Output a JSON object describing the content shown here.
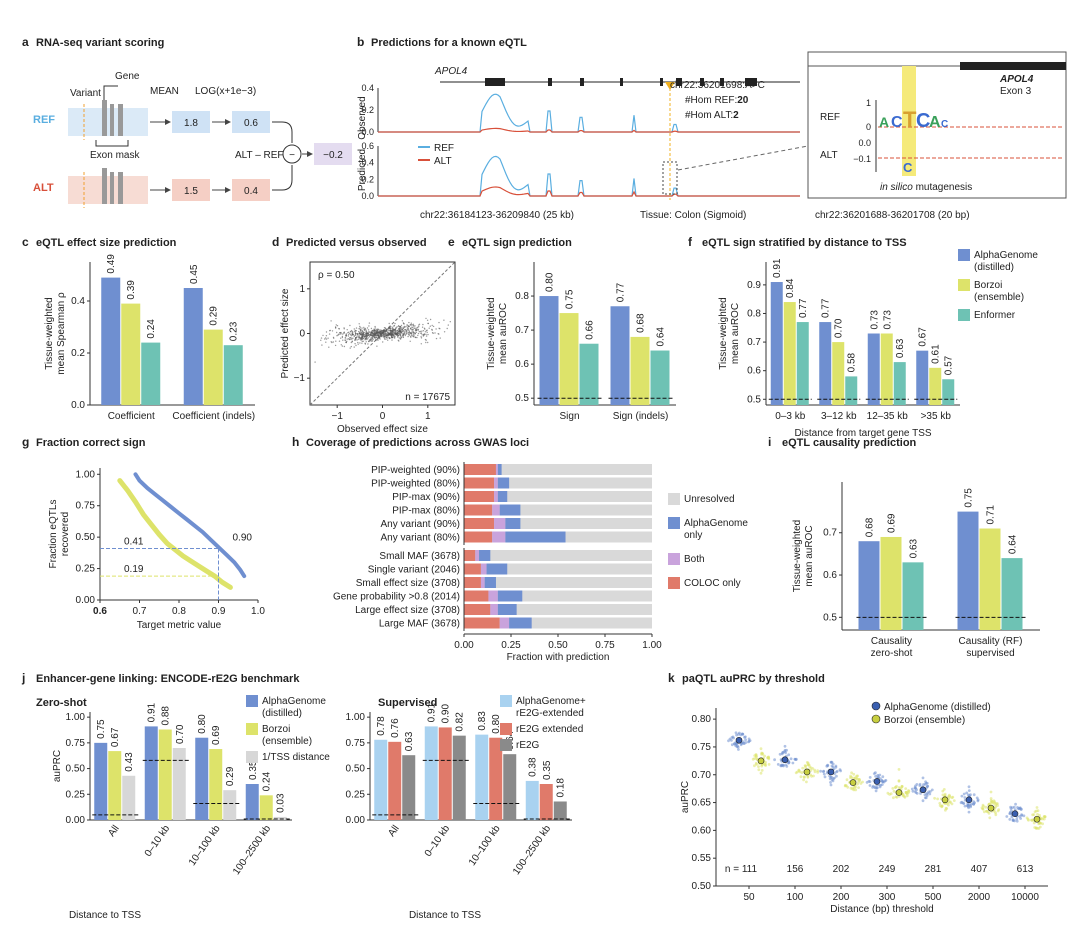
{
  "colors": {
    "ag": "#6f8fd0",
    "bz": "#dde36a",
    "en": "#6ec2b4",
    "grey": "#d9d9d9",
    "ref": "#5aaee0",
    "alt": "#d8503a",
    "coloc": "#e07a6a",
    "both": "#c9a3dc",
    "ag_ext": "#a9d2f0",
    "re2g_ext": "#e07a6a",
    "re2g": "#8a8a8a",
    "tss": "#d7d7d7"
  },
  "panel_a": {
    "letter": "a",
    "title": "RNA-seq variant scoring",
    "variant": "Variant",
    "gene": "Gene",
    "mean": "MEAN",
    "log": "LOG(x+1e−3)",
    "ref": "REF",
    "alt": "ALT",
    "exon_mask": "Exon mask",
    "ref_mean": "1.8",
    "ref_log": "0.6",
    "alt_mean": "1.5",
    "alt_log": "0.4",
    "alt_minus_ref": "ALT – REF",
    "result": "−0.2",
    "minus": "−"
  },
  "panel_b": {
    "letter": "b",
    "title": "Predictions for a known eQTL",
    "gene": "APOL4",
    "variant": "chr22:36201698:A>C",
    "hom_ref_label": "#Hom REF:",
    "hom_ref": "20",
    "hom_alt_label": "#Hom ALT:",
    "hom_alt": "2",
    "observed": "Observed",
    "predicted": "Predicted",
    "ref": "REF",
    "alt": "ALT",
    "region": "chr22:36184123-36209840 (25 kb)",
    "tissue": "Tissue: Colon (Sigmoid)",
    "zoom_region": "chr22:36201688-36201708 (20 bp)",
    "zoom_gene": "APOL4",
    "zoom_exon": "Exon 3",
    "zoom_ref": "REF",
    "zoom_alt": "ALT",
    "ism_italic": "in silico",
    "ism_rest": " mutagenesis",
    "obs_ticks": [
      "0.4",
      "0.2",
      "0.0"
    ],
    "pred_ticks": [
      "0.6",
      "0.4",
      "0.2",
      "0.0"
    ],
    "zoom_ticks_ref": [
      "1",
      "0"
    ],
    "zoom_ticks_alt": [
      "0.0",
      "−0.1"
    ]
  },
  "panel_c": {
    "letter": "c",
    "title": "eQTL effect size prediction",
    "ylabel": "Tissue-weighted mean Spearman ρ",
    "yticks": [
      "0.0",
      "0.2",
      "0.4"
    ],
    "chart_data": {
      "type": "bar",
      "categories": [
        "Coefficient",
        "Coefficient (indels)"
      ],
      "series": [
        {
          "values": [
            0.49,
            0.45
          ],
          "labels": [
            "0.49",
            "0.45"
          ]
        },
        {
          "values": [
            0.39,
            0.29
          ],
          "labels": [
            "0.39",
            "0.29"
          ]
        },
        {
          "values": [
            0.24,
            0.23
          ],
          "labels": [
            "0.24",
            "0.23"
          ]
        }
      ],
      "ylim": [
        0,
        0.55
      ]
    }
  },
  "panel_d": {
    "letter": "d",
    "title": "Predicted versus observed",
    "xlabel": "Observed effect size",
    "ylabel": "Predicted effect size",
    "rho": "ρ = 0.50",
    "n": "n = 17675",
    "xticks": [
      "−1",
      "0",
      "1"
    ],
    "yticks": [
      "1",
      "0",
      "−1"
    ],
    "chart_data": {
      "type": "scatter",
      "xlim": [
        -1.6,
        1.6
      ],
      "ylim": [
        -1.6,
        1.6
      ]
    }
  },
  "panel_e": {
    "letter": "e",
    "title": "eQTL sign prediction",
    "ylabel": "Tissue-weighted mean auROC",
    "yticks": [
      "0.8",
      "0.7",
      "0.6",
      "0.5"
    ],
    "chart_data": {
      "type": "bar",
      "categories": [
        "Sign",
        "Sign (indels)"
      ],
      "series": [
        {
          "values": [
            0.8,
            0.77
          ],
          "labels": [
            "0.80",
            "0.77"
          ]
        },
        {
          "values": [
            0.75,
            0.68
          ],
          "labels": [
            "0.75",
            "0.68"
          ]
        },
        {
          "values": [
            0.66,
            0.64
          ],
          "labels": [
            "0.66",
            "0.64"
          ]
        }
      ],
      "ylim": [
        0.48,
        0.9
      ]
    }
  },
  "panel_f": {
    "letter": "f",
    "title": "eQTL sign stratified by distance to TSS",
    "ylabel": "Tissue-weighted mean auROC",
    "xlabel": "Distance from target gene TSS",
    "yticks": [
      "0.9",
      "0.8",
      "0.7",
      "0.6",
      "0.5"
    ],
    "legend": [
      "AlphaGenome (distilled)",
      "Borzoi (ensemble)",
      "Enformer"
    ],
    "legend_lines": [
      [
        "AlphaGenome",
        "(distilled)"
      ],
      [
        "Borzoi",
        "(ensemble)"
      ],
      [
        "Enformer"
      ]
    ],
    "chart_data": {
      "type": "bar",
      "categories": [
        "0–3 kb",
        "3–12 kb",
        "12–35 kb",
        ">35 kb"
      ],
      "series": [
        {
          "name": "AlphaGenome (distilled)",
          "values": [
            0.91,
            0.77,
            0.73,
            0.67
          ],
          "labels": [
            "0.91",
            "0.77",
            "0.73",
            "0.67"
          ]
        },
        {
          "name": "Borzoi (ensemble)",
          "values": [
            0.84,
            0.7,
            0.73,
            0.61
          ],
          "labels": [
            "0.84",
            "0.70",
            "0.73",
            "0.61"
          ]
        },
        {
          "name": "Enformer",
          "values": [
            0.77,
            0.58,
            0.63,
            0.57
          ],
          "labels": [
            "0.77",
            "0.58",
            "0.63",
            "0.57"
          ]
        }
      ],
      "ylim": [
        0.48,
        0.98
      ]
    }
  },
  "panel_g": {
    "letter": "g",
    "title": "Fraction correct sign",
    "ylabel": "Fraction eQTLs recovered",
    "xlabel": "Target metric value",
    "yticks": [
      "1.00",
      "0.75",
      "0.50",
      "0.25",
      "0.00"
    ],
    "xticks": [
      "0.6",
      "0.7",
      "0.8",
      "0.9",
      "1.0"
    ],
    "ann_041": "0.41",
    "ann_019": "0.19",
    "ann_090": "0.90",
    "chart_data": {
      "type": "line",
      "xlim": [
        0.6,
        1.0
      ],
      "ylim": [
        0,
        1.05
      ],
      "series": [
        {
          "x": [
            0.69,
            0.7,
            0.72,
            0.74,
            0.76,
            0.78,
            0.8,
            0.82,
            0.84,
            0.86,
            0.88,
            0.9,
            0.92,
            0.94,
            0.955,
            0.965
          ],
          "y": [
            1.0,
            0.95,
            0.89,
            0.84,
            0.79,
            0.74,
            0.69,
            0.64,
            0.59,
            0.54,
            0.48,
            0.42,
            0.36,
            0.3,
            0.24,
            0.19
          ]
        },
        {
          "x": [
            0.65,
            0.67,
            0.69,
            0.71,
            0.73,
            0.75,
            0.77,
            0.79,
            0.81,
            0.83,
            0.85,
            0.87,
            0.89,
            0.91,
            0.93
          ],
          "y": [
            0.95,
            0.87,
            0.78,
            0.68,
            0.6,
            0.52,
            0.45,
            0.4,
            0.35,
            0.31,
            0.27,
            0.23,
            0.19,
            0.14,
            0.1
          ]
        }
      ]
    }
  },
  "panel_h": {
    "letter": "h",
    "title": "Coverage of predictions across GWAS loci",
    "xlabel": "Fraction with prediction",
    "xticks": [
      "0.00",
      "0.25",
      "0.50",
      "0.75",
      "1.00"
    ],
    "legend": [
      "Unresolved",
      "AlphaGenome only",
      "Both",
      "COLOC only"
    ],
    "legend_lines": [
      [
        "Unresolved"
      ],
      [
        "AlphaGenome",
        "only"
      ],
      [
        "Both"
      ],
      [
        "COLOC only"
      ]
    ],
    "chart_data": {
      "type": "bar",
      "orientation": "horizontal",
      "xlim": [
        0,
        1
      ],
      "groups": [
        {
          "categories": [
            "PIP-weighted (90%)",
            "PIP-weighted (80%)",
            "PIP-max (90%)",
            "PIP-max (80%)",
            "Any variant (90%)",
            "Any variant (80%)"
          ],
          "coloc": [
            0.17,
            0.16,
            0.16,
            0.15,
            0.16,
            0.15
          ],
          "both": [
            0.01,
            0.02,
            0.02,
            0.04,
            0.06,
            0.07
          ],
          "ag": [
            0.02,
            0.06,
            0.05,
            0.11,
            0.08,
            0.32
          ]
        },
        {
          "categories": [
            "Small MAF (3678)",
            "Single variant (2046)",
            "Small effect size (3708)",
            "Gene probability >0.8 (2014)",
            "Large effect size (3708)",
            "Large MAF (3678)"
          ],
          "coloc": [
            0.06,
            0.09,
            0.09,
            0.13,
            0.14,
            0.19
          ],
          "both": [
            0.02,
            0.03,
            0.02,
            0.05,
            0.04,
            0.05
          ],
          "ag": [
            0.06,
            0.11,
            0.06,
            0.13,
            0.1,
            0.12
          ]
        }
      ]
    }
  },
  "panel_i": {
    "letter": "i",
    "title": "eQTL causality prediction",
    "ylabel": "Tissue-weighted mean auROC",
    "yticks": [
      "0.7",
      "0.6",
      "0.5"
    ],
    "chart_data": {
      "type": "bar",
      "categories": [
        "Causality zero-shot",
        "Causality (RF) supervised"
      ],
      "category_lines": [
        [
          "Causality",
          "zero-shot"
        ],
        [
          "Causality (RF)",
          "supervised"
        ]
      ],
      "series": [
        {
          "values": [
            0.68,
            0.75
          ],
          "labels": [
            "0.68",
            "0.75"
          ]
        },
        {
          "values": [
            0.69,
            0.71
          ],
          "labels": [
            "0.69",
            "0.71"
          ]
        },
        {
          "values": [
            0.63,
            0.64
          ],
          "labels": [
            "0.63",
            "0.64"
          ]
        }
      ],
      "ylim": [
        0.47,
        0.82
      ]
    }
  },
  "panel_j": {
    "letter": "j",
    "title": "Enhancer-gene linking: ENCODE-rE2G benchmark",
    "xlabel": "Distance to TSS",
    "ylabel": "auPRC",
    "yticks": [
      "1.00",
      "0.75",
      "0.50",
      "0.25",
      "0.00"
    ],
    "zs_title": "Zero-shot",
    "sup_title": "Supervised",
    "zs_legend": [
      "AlphaGenome (distilled)",
      "Borzoi (ensemble)",
      "1/TSS distance"
    ],
    "zs_legend_lines": [
      [
        "AlphaGenome",
        "(distilled)"
      ],
      [
        "Borzoi",
        "(ensemble)"
      ],
      [
        "1/TSS distance"
      ]
    ],
    "sup_legend": [
      "AlphaGenome+ rE2G-extended",
      "rE2G extended",
      "rE2G"
    ],
    "sup_legend_lines": [
      [
        "AlphaGenome+",
        "rE2G-extended"
      ],
      [
        "rE2G extended"
      ],
      [
        "rE2G"
      ]
    ],
    "chart_data": [
      {
        "type": "bar",
        "categories": [
          "All",
          "0–10 kb",
          "10–100 kb",
          "100–2500 kb"
        ],
        "ylim": [
          0,
          1.05
        ],
        "series": [
          {
            "name": "AlphaGenome (distilled)",
            "values": [
              0.75,
              0.91,
              0.8,
              0.35
            ],
            "labels": [
              "0.75",
              "0.91",
              "0.80",
              "0.35"
            ]
          },
          {
            "name": "Borzoi (ensemble)",
            "values": [
              0.67,
              0.88,
              0.69,
              0.24
            ],
            "labels": [
              "0.67",
              "0.88",
              "0.69",
              "0.24"
            ]
          },
          {
            "name": "1/TSS distance",
            "values": [
              0.43,
              0.7,
              0.29,
              0.03
            ],
            "labels": [
              "0.43",
              "0.70",
              "0.29",
              "0.03"
            ]
          }
        ],
        "baselines": [
          0.05,
          0.58,
          0.16,
          0.01
        ]
      },
      {
        "type": "bar",
        "categories": [
          "All",
          "0–10 kb",
          "10–100 kb",
          "100–2500 kb"
        ],
        "ylim": [
          0,
          1.05
        ],
        "series": [
          {
            "name": "AlphaGenome+ rE2G-extended",
            "values": [
              0.78,
              0.91,
              0.83,
              0.38
            ],
            "labels": [
              "0.78",
              "0.91",
              "0.83",
              "0.38"
            ]
          },
          {
            "name": "rE2G extended",
            "values": [
              0.76,
              0.9,
              0.8,
              0.35
            ],
            "labels": [
              "0.76",
              "0.90",
              "0.80",
              "0.35"
            ]
          },
          {
            "name": "rE2G",
            "values": [
              0.63,
              0.82,
              0.64,
              0.18
            ],
            "labels": [
              "0.63",
              "0.82",
              "0.64",
              "0.18"
            ]
          }
        ],
        "baselines": [
          0.05,
          0.58,
          0.16,
          0.01
        ]
      }
    ]
  },
  "panel_k": {
    "letter": "k",
    "title": "paQTL auPRC by threshold",
    "ylabel": "auPRC",
    "xlabel": "Distance (bp) threshold",
    "yticks": [
      "0.80",
      "0.75",
      "0.70",
      "0.65",
      "0.60",
      "0.55",
      "0.50"
    ],
    "legend": [
      "AlphaGenome (distilled)",
      "Borzoi (ensemble)"
    ],
    "n_labels": [
      "n = 111",
      "156",
      "202",
      "249",
      "281",
      "407",
      "613"
    ],
    "chart_data": {
      "type": "scatter",
      "categories": [
        "50",
        "100",
        "200",
        "300",
        "500",
        "2000",
        "10000"
      ],
      "ylim": [
        0.5,
        0.82
      ],
      "series": [
        {
          "name": "AlphaGenome (distilled)",
          "values": [
            0.762,
            0.727,
            0.705,
            0.688,
            0.673,
            0.655,
            0.63
          ]
        },
        {
          "name": "Borzoi (ensemble)",
          "values": [
            0.725,
            0.705,
            0.686,
            0.668,
            0.655,
            0.64,
            0.62
          ]
        }
      ]
    }
  }
}
